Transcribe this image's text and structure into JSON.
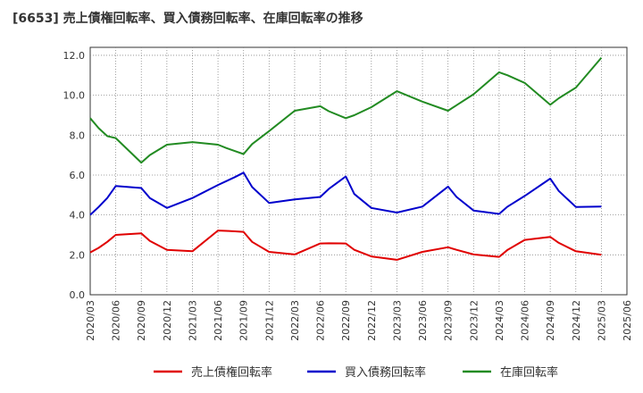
{
  "chart_data": {
    "type": "line",
    "title": "[6653]  売上債権回転率、買入債務回転率、在庫回転率の推移",
    "xlabel": "",
    "ylabel": "",
    "ylim": [
      0,
      12.4
    ],
    "yticks": [
      "0.0",
      "2.0",
      "4.0",
      "6.0",
      "8.0",
      "10.0",
      "12.0"
    ],
    "ytick_values": [
      0,
      2,
      4,
      6,
      8,
      10,
      12
    ],
    "grid": true,
    "legend_position": "bottom",
    "categories": [
      "2020/03",
      "2020/06",
      "2020/09",
      "2020/12",
      "2021/03",
      "2021/06",
      "2021/09",
      "2021/12",
      "2022/03",
      "2022/06",
      "2022/09",
      "2022/12",
      "2023/03",
      "2023/06",
      "2023/09",
      "2023/12",
      "2024/03",
      "2024/06",
      "2024/09",
      "2024/12",
      "2025/03",
      "2025/06"
    ],
    "x": [
      "2020/03",
      "2020/04",
      "2020/05",
      "2020/06",
      "2020/09",
      "2020/10",
      "2020/12",
      "2021/03",
      "2021/06",
      "2021/07",
      "2021/08",
      "2021/09",
      "2021/10",
      "2021/12",
      "2022/03",
      "2022/06",
      "2022/07",
      "2022/09",
      "2022/10",
      "2022/12",
      "2023/03",
      "2023/06",
      "2023/09",
      "2023/10",
      "2023/12",
      "2024/03",
      "2024/04",
      "2024/06",
      "2024/09",
      "2024/10",
      "2024/12",
      "2025/03"
    ],
    "series": [
      {
        "name": "売上債権回転率",
        "color": "#e00000",
        "values": [
          2.12,
          2.35,
          2.65,
          3.0,
          3.08,
          2.7,
          2.25,
          2.18,
          3.22,
          3.2,
          3.18,
          3.15,
          2.65,
          2.15,
          2.02,
          2.57,
          2.58,
          2.57,
          2.25,
          1.92,
          1.75,
          2.15,
          2.38,
          2.25,
          2.02,
          1.9,
          2.25,
          2.75,
          2.9,
          2.6,
          2.18,
          2.0
        ]
      },
      {
        "name": "買入債務回転率",
        "color": "#0000cc",
        "values": [
          4.0,
          4.4,
          4.85,
          5.45,
          5.35,
          4.85,
          4.35,
          4.85,
          5.5,
          5.7,
          5.9,
          6.12,
          5.4,
          4.6,
          4.78,
          4.9,
          5.3,
          5.93,
          5.05,
          4.35,
          4.12,
          4.42,
          5.42,
          4.9,
          4.22,
          4.05,
          4.42,
          4.95,
          5.82,
          5.2,
          4.4,
          4.42
        ]
      },
      {
        "name": "在庫回転率",
        "color": "#228b22",
        "values": [
          8.85,
          8.35,
          7.95,
          7.85,
          6.62,
          7.0,
          7.52,
          7.65,
          7.52,
          7.35,
          7.2,
          7.05,
          7.55,
          8.2,
          9.22,
          9.45,
          9.2,
          8.85,
          9.0,
          9.4,
          10.2,
          9.68,
          9.22,
          9.5,
          10.05,
          11.15,
          11.0,
          10.62,
          9.52,
          9.85,
          10.38,
          11.88
        ]
      }
    ]
  }
}
